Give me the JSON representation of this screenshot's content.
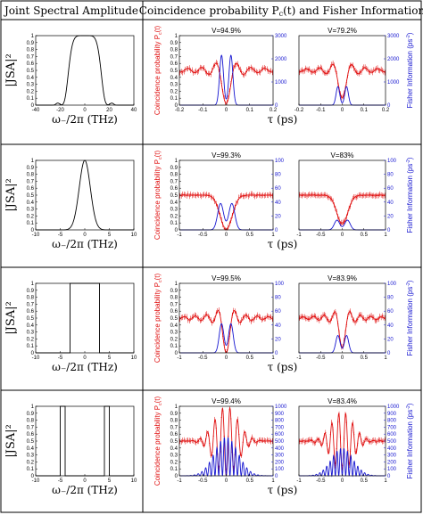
{
  "header": {
    "left_title": "Joint Spectral Amplitude",
    "right_title": "Coincidence probability P",
    "right_title_sub": "c",
    "right_title_tail": "(t) and Fisher Information"
  },
  "labels": {
    "jsa_ylabel": "|JSA|²",
    "jsa_xlabel": "ω₋/2π (THz)",
    "tau_xlabel": "τ (ps)",
    "coinc_ylabel": "Coincidence probability P",
    "coinc_ylabel_sub": "c",
    "coinc_ylabel_tail": "(t)",
    "fisher_ylabel": "Fisher Information (ps",
    "fisher_ylabel_sup": "-2",
    "fisher_ylabel_tail": ")"
  },
  "colors": {
    "red": "#e01010",
    "blue": "#1515d0",
    "black": "#000000"
  },
  "chart_data": [
    {
      "type": "line",
      "panel": "jsa",
      "row": 1,
      "shape": "flat-top",
      "xlim": [
        -40,
        40
      ],
      "xticks": [
        -40,
        -20,
        0,
        20,
        40
      ],
      "ylim": [
        0,
        1
      ],
      "yticks": [
        "0",
        "0.1",
        "0.2",
        "0.3",
        "0.4",
        "0.5",
        "0.6",
        "0.7",
        "0.8",
        "0.9",
        "1"
      ],
      "xlabel": "ω₋/2π (THz)",
      "ylabel": "|JSA|²"
    },
    {
      "type": "line",
      "panel": "jsa",
      "row": 2,
      "shape": "peaked",
      "xlim": [
        -10,
        10
      ],
      "xticks": [
        -10,
        -5,
        0,
        5,
        10
      ],
      "ylim": [
        0,
        1
      ],
      "yticks": [
        "0",
        "0.1",
        "0.2",
        "0.3",
        "0.4",
        "0.5",
        "0.6",
        "0.7",
        "0.8",
        "0.9",
        "1"
      ],
      "xlabel": "ω₋/2π (THz)",
      "ylabel": "|JSA|²"
    },
    {
      "type": "line",
      "panel": "jsa",
      "row": 3,
      "shape": "rectangle",
      "xlim": [
        -10,
        10
      ],
      "xticks": [
        -10,
        -5,
        0,
        5,
        10
      ],
      "ylim": [
        0,
        1
      ],
      "yticks": [
        "0",
        "0.1",
        "0.2",
        "0.3",
        "0.4",
        "0.5",
        "0.6",
        "0.7",
        "0.8",
        "0.9",
        "1"
      ],
      "xlabel": "ω₋/2π (THz)",
      "ylabel": "|JSA|²"
    },
    {
      "type": "line",
      "panel": "jsa",
      "row": 4,
      "shape": "double-rectangle",
      "xlim": [
        -10,
        10
      ],
      "xticks": [
        -10,
        -5,
        0,
        5,
        10
      ],
      "ylim": [
        0,
        1
      ],
      "yticks": [
        "0",
        "0.1",
        "0.2",
        "0.3",
        "0.4",
        "0.5",
        "0.6",
        "0.7",
        "0.8",
        "0.9",
        "1"
      ],
      "xlabel": "ω₋/2π (THz)",
      "ylabel": "|JSA|²"
    },
    {
      "type": "line",
      "panel": "coinc",
      "row": 1,
      "col": 1,
      "title": "V=94.9%",
      "xlim": [
        -0.2,
        0.2
      ],
      "xticks": [
        "-0.2",
        "-0.1",
        "0",
        "0.1",
        "0.2"
      ],
      "ylim": [
        0,
        1
      ],
      "yticks": [
        "0",
        "0.1",
        "0.2",
        "0.3",
        "0.4",
        "0.5",
        "0.6",
        "0.7",
        "0.8",
        "0.9",
        "1"
      ],
      "ylim_right": [
        0,
        3000
      ],
      "yticks_right": [
        "0",
        "1000",
        "2000",
        "3000"
      ],
      "coinc": {
        "kind": "sinc",
        "baseline": 0.5,
        "visibility": 0.949,
        "width": 0.03
      },
      "fisher": {
        "kind": "double",
        "peak": 2150,
        "offset": 0.02,
        "sigma": 0.012
      }
    },
    {
      "type": "line",
      "panel": "coinc",
      "row": 1,
      "col": 2,
      "title": "V=79.2%",
      "xlim": [
        -0.2,
        0.2
      ],
      "xticks": [
        "-0.2",
        "-0.1",
        "0",
        "0.1",
        "0.2"
      ],
      "ylim": [
        0,
        1
      ],
      "yticks": [],
      "ylim_right": [
        0,
        3000
      ],
      "yticks_right": [
        "0",
        "1000",
        "2000",
        "3000"
      ],
      "coinc": {
        "kind": "sinc",
        "baseline": 0.5,
        "visibility": 0.792,
        "width": 0.03
      },
      "fisher": {
        "kind": "double",
        "peak": 800,
        "offset": 0.02,
        "sigma": 0.012
      }
    },
    {
      "type": "line",
      "panel": "coinc",
      "row": 2,
      "col": 1,
      "title": "V=99.3%",
      "xlim": [
        -1,
        1
      ],
      "xticks": [
        "-1",
        "-0.5",
        "0",
        "0.5",
        "1"
      ],
      "ylim": [
        0,
        1
      ],
      "yticks": [
        "0",
        "0.1",
        "0.2",
        "0.3",
        "0.4",
        "0.5",
        "0.6",
        "0.7",
        "0.8",
        "0.9",
        "1"
      ],
      "ylim_right": [
        0,
        100
      ],
      "yticks_right": [
        "0",
        "20",
        "40",
        "60",
        "80",
        "100"
      ],
      "coinc": {
        "kind": "gauss",
        "baseline": 0.5,
        "visibility": 0.993,
        "width": 0.18
      },
      "fisher": {
        "kind": "double",
        "peak": 38,
        "offset": 0.12,
        "sigma": 0.09
      }
    },
    {
      "type": "line",
      "panel": "coinc",
      "row": 2,
      "col": 2,
      "title": "V=83%",
      "xlim": [
        -1,
        1
      ],
      "xticks": [
        "-1",
        "-0.5",
        "0",
        "0.5",
        "1"
      ],
      "ylim": [
        0,
        1
      ],
      "yticks": [],
      "ylim_right": [
        0,
        100
      ],
      "yticks_right": [
        "0",
        "20",
        "40",
        "60",
        "80",
        "100"
      ],
      "coinc": {
        "kind": "gauss",
        "baseline": 0.5,
        "visibility": 0.83,
        "width": 0.18
      },
      "fisher": {
        "kind": "double",
        "peak": 14,
        "offset": 0.12,
        "sigma": 0.09
      }
    },
    {
      "type": "line",
      "panel": "coinc",
      "row": 3,
      "col": 1,
      "title": "V=99.5%",
      "xlim": [
        -1,
        1
      ],
      "xticks": [
        "-1",
        "-0.5",
        "0",
        "0.5",
        "1"
      ],
      "ylim": [
        0,
        1
      ],
      "yticks": [
        "0",
        "0.1",
        "0.2",
        "0.3",
        "0.4",
        "0.5",
        "0.6",
        "0.7",
        "0.8",
        "0.9",
        "1"
      ],
      "ylim_right": [
        0,
        100
      ],
      "yticks_right": [
        "0",
        "20",
        "40",
        "60",
        "80",
        "100"
      ],
      "coinc": {
        "kind": "sinc",
        "baseline": 0.5,
        "visibility": 0.995,
        "width": 0.12
      },
      "fisher": {
        "kind": "double",
        "peak": 42,
        "offset": 0.1,
        "sigma": 0.07
      }
    },
    {
      "type": "line",
      "panel": "coinc",
      "row": 3,
      "col": 2,
      "title": "V=83.9%",
      "xlim": [
        -1,
        1
      ],
      "xticks": [
        "-1",
        "-0.5",
        "0",
        "0.5",
        "1"
      ],
      "ylim": [
        0,
        1
      ],
      "yticks": [],
      "ylim_right": [
        0,
        100
      ],
      "yticks_right": [
        "0",
        "20",
        "40",
        "60",
        "80",
        "100"
      ],
      "coinc": {
        "kind": "sinc",
        "baseline": 0.5,
        "visibility": 0.839,
        "width": 0.12
      },
      "fisher": {
        "kind": "double",
        "peak": 25,
        "offset": 0.1,
        "sigma": 0.07
      }
    },
    {
      "type": "line",
      "panel": "coinc",
      "row": 4,
      "col": 1,
      "title": "V=99.4%",
      "xlim": [
        -1,
        1
      ],
      "xticks": [
        "-1",
        "-0.5",
        "0",
        "0.5",
        "1"
      ],
      "ylim": [
        0,
        1
      ],
      "yticks": [
        "0",
        "0.1",
        "0.2",
        "0.3",
        "0.4",
        "0.5",
        "0.6",
        "0.7",
        "0.8",
        "0.9",
        "1"
      ],
      "ylim_right": [
        0,
        1000
      ],
      "yticks_right": [
        "0",
        "100",
        "200",
        "300",
        "400",
        "500",
        "600",
        "700",
        "800",
        "900",
        "1000"
      ],
      "coinc": {
        "kind": "fringe",
        "baseline": 0.5,
        "visibility": 0.994,
        "width": 0.35,
        "freq": 12.5
      },
      "fisher": {
        "kind": "comb",
        "peak": 560,
        "width": 0.35,
        "freq": 12.5
      }
    },
    {
      "type": "line",
      "panel": "coinc",
      "row": 4,
      "col": 2,
      "title": "V=83.4%",
      "xlim": [
        -1,
        1
      ],
      "xticks": [
        "-1",
        "-0.5",
        "0",
        "0.5",
        "1"
      ],
      "ylim": [
        0,
        1
      ],
      "yticks": [],
      "ylim_right": [
        0,
        1000
      ],
      "yticks_right": [
        "0",
        "100",
        "200",
        "300",
        "400",
        "500",
        "600",
        "700",
        "800",
        "900",
        "1000"
      ],
      "coinc": {
        "kind": "fringe",
        "baseline": 0.5,
        "visibility": 0.834,
        "width": 0.35,
        "freq": 12.5
      },
      "fisher": {
        "kind": "comb",
        "peak": 400,
        "width": 0.35,
        "freq": 12.5
      }
    }
  ]
}
